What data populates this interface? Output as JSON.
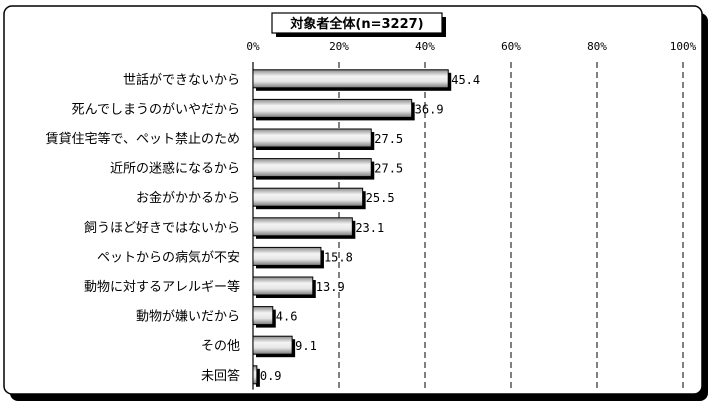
{
  "chart_data": {
    "type": "bar",
    "orientation": "horizontal",
    "title": "対象者全体(n=3227)",
    "categories": [
      "世話ができないから",
      "死んでしまうのがいやだから",
      "賃貸住宅等で、ペット禁止のため",
      "近所の迷惑になるから",
      "お金がかかるから",
      "飼うほど好きではないから",
      "ペットからの病気が不安",
      "動物に対するアレルギー等",
      "動物が嫌いだから",
      "その他",
      "未回答"
    ],
    "values": [
      45.4,
      36.9,
      27.5,
      27.5,
      25.5,
      23.1,
      15.8,
      13.9,
      4.6,
      9.1,
      0.9
    ],
    "value_labels": [
      "45.4",
      "36.9",
      "27.5",
      "27.5",
      "25.5",
      "23.1",
      "15.8",
      "13.9",
      "4.6",
      "9.1",
      "0.9"
    ],
    "xlim": [
      0,
      100
    ],
    "xticks": [
      "0%",
      "20%",
      "40%",
      "60%",
      "80%",
      "100%"
    ],
    "grid": "vertical dashed",
    "bar_fill": "gradient gray"
  }
}
